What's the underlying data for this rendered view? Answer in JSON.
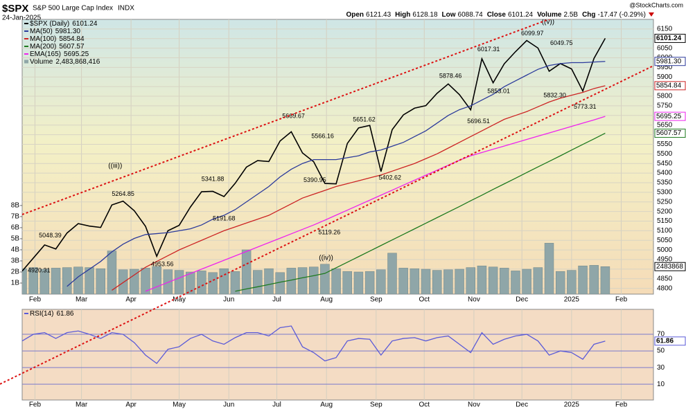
{
  "header": {
    "symbol": "$SPX",
    "name": "S&P 500 Large Cap Index",
    "exchange": "INDX",
    "date": "24-Jan-2025",
    "source": "@StockCharts.com",
    "quote": [
      {
        "label": "Open",
        "value": "6121.43"
      },
      {
        "label": "High",
        "value": "6128.18"
      },
      {
        "label": "Low",
        "value": "6088.74"
      },
      {
        "label": "Close",
        "value": "6101.24"
      },
      {
        "label": "Volume",
        "value": "2.5B"
      },
      {
        "label": "Chg",
        "value": "-17.47 (-0.29%)"
      }
    ]
  },
  "chart_data": [
    {
      "type": "line",
      "grid": true,
      "x": [
        0,
        1,
        2,
        3,
        4,
        5,
        6,
        7,
        8,
        9,
        10,
        11,
        12,
        13,
        14,
        15,
        16,
        17,
        18,
        19,
        20,
        21,
        22,
        23,
        24,
        25,
        26,
        27,
        28,
        29,
        30,
        31,
        32,
        33,
        34,
        35,
        36,
        37,
        38,
        39,
        40,
        41,
        42,
        43,
        44,
        45,
        46,
        47,
        48,
        49,
        50,
        51,
        52
      ],
      "xlim": [
        0,
        56.3
      ],
      "xticks": [
        {
          "value": 1.14,
          "label": "Feb"
        },
        {
          "value": 5.29,
          "label": "Mar"
        },
        {
          "value": 9.71,
          "label": "Apr"
        },
        {
          "value": 14,
          "label": "May"
        },
        {
          "value": 18.43,
          "label": "Jun"
        },
        {
          "value": 22.71,
          "label": "Jul"
        },
        {
          "value": 27.14,
          "label": "Aug"
        },
        {
          "value": 31.57,
          "label": "Sep"
        },
        {
          "value": 35.86,
          "label": "Oct"
        },
        {
          "value": 40.29,
          "label": "Nov"
        },
        {
          "value": 44.57,
          "label": "Dec"
        },
        {
          "value": 49,
          "label": "2025"
        },
        {
          "value": 53.43,
          "label": "Feb"
        }
      ],
      "ylim": [
        4770,
        6200
      ],
      "yticks": [
        4800,
        4850,
        4900,
        4950,
        5000,
        5050,
        5100,
        5150,
        5200,
        5250,
        5300,
        5350,
        5400,
        5450,
        5500,
        5550,
        5600,
        5650,
        5700,
        5750,
        5800,
        5850,
        5900,
        5950,
        6000,
        6050,
        6100,
        6150
      ],
      "y2lim": [
        0,
        24800000000
      ],
      "y2ticks": [
        {
          "value": 1000000000,
          "label": "1B"
        },
        {
          "value": 2000000000,
          "label": "2B"
        },
        {
          "value": 3000000000,
          "label": "3B"
        },
        {
          "value": 4000000000,
          "label": "4B"
        },
        {
          "value": 5000000000,
          "label": "5B"
        },
        {
          "value": 6000000000,
          "label": "6B"
        },
        {
          "value": 7000000000,
          "label": "7B"
        },
        {
          "value": 8000000000,
          "label": "8B"
        }
      ],
      "series": [
        {
          "name": "$SPX (Daily)",
          "end_label": "6101.24",
          "color": "#000000",
          "values": [
            4890,
            4958,
            5026,
            5005,
            5088,
            5137,
            5124,
            5117,
            5234,
            5254,
            5204,
            5123,
            4967,
            5100,
            5128,
            5223,
            5303,
            5305,
            5278,
            5347,
            5431,
            5465,
            5460,
            5567,
            5615,
            5505,
            5459,
            5346,
            5344,
            5554,
            5635,
            5648,
            5408,
            5626,
            5703,
            5738,
            5751,
            5815,
            5864,
            5808,
            5729,
            5995,
            5870,
            5969,
            6032,
            6090,
            6051,
            5930,
            5970,
            5942,
            5827,
            5997,
            6101.24
          ]
        },
        {
          "name": "MA(50)",
          "end_label": "5981.30",
          "color": "#2b3a9b",
          "values": [
            null,
            null,
            null,
            null,
            4810,
            4860,
            4900,
            4940,
            4990,
            5030,
            5060,
            5080,
            5085,
            5090,
            5100,
            5110,
            5130,
            5160,
            5180,
            5210,
            5250,
            5290,
            5330,
            5380,
            5420,
            5450,
            5470,
            5470,
            5470,
            5480,
            5490,
            5510,
            5520,
            5540,
            5560,
            5590,
            5620,
            5660,
            5700,
            5730,
            5750,
            5780,
            5810,
            5850,
            5880,
            5910,
            5940,
            5960,
            5970,
            5975,
            5975,
            5978,
            5981.3
          ]
        },
        {
          "name": "MA(100)",
          "end_label": "5854.84",
          "color": "#cc2222",
          "values": [
            null,
            null,
            null,
            null,
            null,
            null,
            null,
            null,
            4790,
            4830,
            4870,
            4910,
            4940,
            4970,
            5000,
            5025,
            5050,
            5075,
            5100,
            5120,
            5140,
            5160,
            5180,
            5210,
            5240,
            5270,
            5290,
            5310,
            5330,
            5345,
            5360,
            5375,
            5390,
            5410,
            5430,
            5450,
            5475,
            5500,
            5530,
            5560,
            5590,
            5620,
            5650,
            5680,
            5700,
            5720,
            5745,
            5770,
            5790,
            5805,
            5820,
            5840,
            5854.84
          ]
        },
        {
          "name": "MA(200)",
          "end_label": "5607.57",
          "color": "#1e7a1e",
          "values": [
            null,
            null,
            null,
            null,
            null,
            null,
            null,
            null,
            null,
            null,
            null,
            null,
            null,
            null,
            null,
            null,
            null,
            null,
            null,
            4785,
            4797,
            4808,
            4820,
            4832,
            4843,
            4855,
            4866,
            4878,
            4907,
            4936,
            4965,
            4994,
            5023,
            5052,
            5081,
            5110,
            5139,
            5168,
            5197,
            5226,
            5256,
            5285,
            5315,
            5344,
            5373,
            5403,
            5432,
            5461,
            5490,
            5520,
            5549,
            5578,
            5607.57
          ]
        },
        {
          "name": "EMA(165)",
          "end_label": "5695.25",
          "color": "#ee22ee",
          "values": [
            null,
            null,
            null,
            null,
            null,
            null,
            null,
            null,
            null,
            null,
            null,
            4785,
            4808,
            4831,
            4854,
            4877,
            4900,
            4923,
            4946,
            4969,
            4992,
            5015,
            5038,
            5061,
            5084,
            5107,
            5130,
            5155,
            5181,
            5207,
            5233,
            5259,
            5285,
            5311,
            5337,
            5363,
            5389,
            5415,
            5441,
            5467,
            5490,
            5507,
            5524,
            5541,
            5558,
            5575,
            5592,
            5609,
            5626,
            5643,
            5660,
            5677,
            5695.25
          ]
        },
        {
          "name": "Volume",
          "type": "bar",
          "axis": "y2",
          "end_label": "2,483,868,416",
          "box_label": "2483868",
          "color": "#8fa6a8",
          "values": [
            2300000000,
            2400000000,
            2250000000,
            2350000000,
            2400000000,
            2450000000,
            2400000000,
            2300000000,
            3900000000,
            2200000000,
            2250000000,
            2350000000,
            2500000000,
            2200000000,
            2150000000,
            2000000000,
            2100000000,
            1950000000,
            2300000000,
            2050000000,
            4000000000,
            2150000000,
            2300000000,
            1950000000,
            2350000000,
            2400000000,
            2450000000,
            2700000000,
            2300000000,
            2050000000,
            2000000000,
            2050000000,
            2200000000,
            3700000000,
            2350000000,
            2300000000,
            2250000000,
            2150000000,
            2200000000,
            2250000000,
            2400000000,
            2550000000,
            2450000000,
            2350000000,
            2100000000,
            2250000000,
            2400000000,
            4600000000,
            2050000000,
            2150000000,
            2550000000,
            2600000000,
            2483868416
          ]
        }
      ],
      "annotations": [
        {
          "label": "5048.39",
          "x": 2.5,
          "value": 5048.39,
          "side": "above"
        },
        {
          "label": "4920.31",
          "x": 1.5,
          "value": 4920.31,
          "side": "below"
        },
        {
          "label": "5264.85",
          "x": 9,
          "value": 5264.85,
          "side": "above"
        },
        {
          "label": "4953.56",
          "x": 12.5,
          "value": 4953.56,
          "side": "below"
        },
        {
          "label": "5341.88",
          "x": 17,
          "value": 5341.88,
          "side": "above"
        },
        {
          "label": "5191.68",
          "x": 18,
          "value": 5191.68,
          "side": "below"
        },
        {
          "label": "5669.67",
          "x": 24.2,
          "value": 5669.67,
          "side": "above"
        },
        {
          "label": "5566.16",
          "x": 26.8,
          "value": 5566.16,
          "side": "above"
        },
        {
          "label": "5390.95",
          "x": 26.1,
          "value": 5390.95,
          "side": "below"
        },
        {
          "label": "5119.26",
          "x": 27.4,
          "value": 5119.26,
          "side": "below"
        },
        {
          "label": "5651.62",
          "x": 30.5,
          "value": 5651.62,
          "side": "above"
        },
        {
          "label": "5402.62",
          "x": 32.8,
          "value": 5402.62,
          "side": "below"
        },
        {
          "label": "5878.46",
          "x": 38.2,
          "value": 5878.46,
          "side": "above"
        },
        {
          "label": "5696.51",
          "x": 40.7,
          "value": 5696.51,
          "side": "below"
        },
        {
          "label": "6017.31",
          "x": 41.6,
          "value": 6017.31,
          "side": "above"
        },
        {
          "label": "5853.01",
          "x": 42.5,
          "value": 5853.01,
          "side": "below"
        },
        {
          "label": "6099.97",
          "x": 45.5,
          "value": 6099.97,
          "side": "above"
        },
        {
          "label": "6049.75",
          "x": 48.1,
          "value": 6049.75,
          "side": "above"
        },
        {
          "label": "5832.30",
          "x": 47.5,
          "value": 5832.3,
          "side": "below"
        },
        {
          "label": "5773.31",
          "x": 50.2,
          "value": 5773.31,
          "side": "below"
        }
      ],
      "waves": [
        {
          "label": "((iii))",
          "x": 8.3,
          "value": 5436,
          "color": "#cc0000"
        },
        {
          "label": "((iv))",
          "x": 27.1,
          "value": 4957,
          "color": "#cc0000"
        },
        {
          "label": "((v))",
          "x": 46.9,
          "value": 6186,
          "color": "#cc0000"
        }
      ]
    },
    {
      "type": "line",
      "grid": true,
      "x": [
        0,
        1,
        2,
        3,
        4,
        5,
        6,
        7,
        8,
        9,
        10,
        11,
        12,
        13,
        14,
        15,
        16,
        17,
        18,
        19,
        20,
        21,
        22,
        23,
        24,
        25,
        26,
        27,
        28,
        29,
        30,
        31,
        32,
        33,
        34,
        35,
        36,
        37,
        38,
        39,
        40,
        41,
        42,
        43,
        44,
        45,
        46,
        47,
        48,
        49,
        50,
        51,
        52
      ],
      "xlim": [
        0,
        56.3
      ],
      "xticks": [
        {
          "value": 1.14,
          "label": "Feb"
        },
        {
          "value": 5.29,
          "label": "Mar"
        },
        {
          "value": 9.71,
          "label": "Apr"
        },
        {
          "value": 14,
          "label": "May"
        },
        {
          "value": 18.43,
          "label": "Jun"
        },
        {
          "value": 22.71,
          "label": "Jul"
        },
        {
          "value": 27.14,
          "label": "Aug"
        },
        {
          "value": 31.57,
          "label": "Sep"
        },
        {
          "value": 35.86,
          "label": "Oct"
        },
        {
          "value": 40.29,
          "label": "Nov"
        },
        {
          "value": 44.57,
          "label": "Dec"
        },
        {
          "value": 49,
          "label": "2025"
        },
        {
          "value": 53.43,
          "label": "Feb"
        }
      ],
      "ylim": [
        -9,
        100
      ],
      "yticks": [
        10,
        30,
        50,
        70
      ],
      "series": [
        {
          "name": "RSI(14)",
          "end_label": "61.86",
          "color": "#5a5ad8",
          "values": [
            62,
            70,
            72,
            65,
            72,
            74,
            70,
            65,
            72,
            70,
            60,
            45,
            35,
            52,
            55,
            65,
            70,
            62,
            58,
            66,
            72,
            72,
            68,
            78,
            80,
            55,
            48,
            38,
            42,
            62,
            65,
            64,
            45,
            62,
            65,
            66,
            62,
            66,
            68,
            58,
            48,
            72,
            58,
            64,
            68,
            70,
            62,
            45,
            50,
            48,
            40,
            58,
            61.86
          ]
        }
      ]
    }
  ]
}
